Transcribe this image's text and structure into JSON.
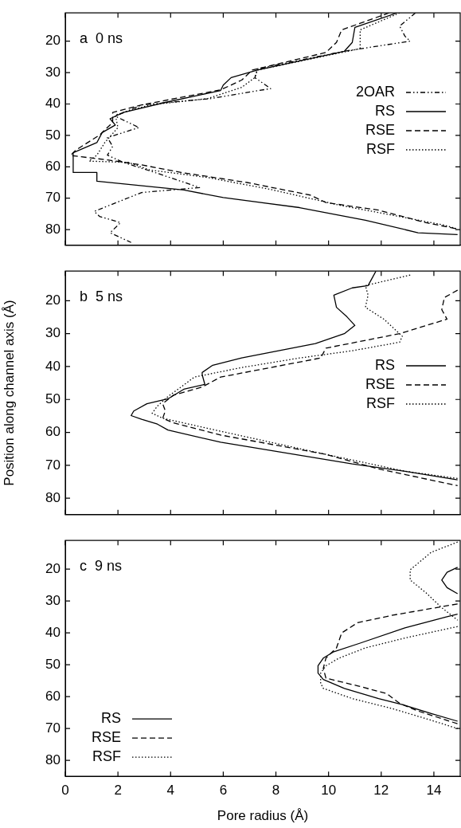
{
  "chart_data": [
    {
      "type": "line",
      "annotations": [
        "a  0 ns"
      ],
      "xlim": [
        0,
        15
      ],
      "xticks": [
        0,
        2,
        4,
        6,
        8,
        10,
        12,
        14
      ],
      "ylim": [
        85,
        11
      ],
      "yticks": [
        20,
        30,
        40,
        50,
        60,
        70,
        80
      ],
      "tick_labels": "y",
      "grid": false,
      "legend": "right",
      "marker": "none",
      "series": [
        {
          "name": "2OAR",
          "color": "#000000",
          "line_style": "dashdot",
          "x": [
            13.3,
            12.7,
            12.9,
            13.1,
            10.6,
            7.3,
            7.2,
            7.8,
            5.5,
            2.9,
            1.9,
            2.8,
            1.6,
            1.8,
            1.6,
            2.2,
            3.4,
            5.1,
            2.9,
            1.1,
            1.3,
            2.1,
            1.7,
            2.5
          ],
          "values": [
            11,
            15.2,
            18.4,
            20,
            23.2,
            28.8,
            31.6,
            35.1,
            38.3,
            40.3,
            43.9,
            47.5,
            50.7,
            53.5,
            56.3,
            58.6,
            61.8,
            66.6,
            68.2,
            74.2,
            75.8,
            77.8,
            81,
            84.1
          ]
        },
        {
          "name": "RS",
          "color": "#000000",
          "line_style": "solid",
          "x": [
            12.6,
            11.0,
            10.9,
            10.6,
            7.3,
            6.3,
            6.0,
            5.9,
            3.8,
            2.2,
            1.7,
            1.9,
            1.4,
            1.2,
            0.3,
            0.3,
            1.2,
            1.2,
            4.5,
            6.0,
            8.9,
            11.4,
            13.4,
            14.9
          ],
          "values": [
            11,
            15.6,
            20.4,
            23.2,
            29.2,
            31.6,
            34,
            35.7,
            39.5,
            42.7,
            44.7,
            46.7,
            49.1,
            52.3,
            55.5,
            61.8,
            61.8,
            64.6,
            67.4,
            69.8,
            73,
            77,
            81,
            81.6
          ]
        },
        {
          "name": "RSE",
          "color": "#000000",
          "line_style": "dashed",
          "x": [
            12.3,
            10.5,
            10.3,
            9.9,
            7.1,
            6.7,
            5.9,
            2.9,
            1.8,
            1.8,
            1.3,
            0.4,
            0.2,
            1.6,
            2.9,
            4.4,
            6.9,
            9.3,
            9.9,
            11.9,
            13.7,
            14.9
          ],
          "values": [
            11,
            16.4,
            20.4,
            23.6,
            29.2,
            32.4,
            35.5,
            40.3,
            42.7,
            45.9,
            49.9,
            54.7,
            56.4,
            57.8,
            59.4,
            61.8,
            65,
            69,
            71.4,
            73.8,
            77.8,
            79.8
          ]
        },
        {
          "name": "RSF",
          "color": "#000000",
          "line_style": "dotted",
          "x": [
            12.7,
            11.2,
            11.2,
            10.5,
            7.3,
            7.2,
            6.7,
            5.4,
            3.2,
            1.9,
            2.0,
            1.5,
            1.2,
            0.9,
            2.4,
            3.2,
            5.4,
            7.9,
            10.4,
            12.4,
            14.4,
            14.9
          ],
          "values": [
            11,
            16.4,
            22.4,
            23.6,
            29.2,
            31.6,
            34.7,
            38.3,
            40.3,
            43.5,
            47.5,
            52.3,
            56.3,
            58.2,
            58.6,
            61,
            63.4,
            67.4,
            72.2,
            75.4,
            78.6,
            79.8
          ]
        }
      ]
    },
    {
      "type": "line",
      "annotations": [
        "b  5 ns"
      ],
      "ylabel": "Position along channel axis (Å)",
      "xlim": [
        0,
        15
      ],
      "xticks": [
        0,
        2,
        4,
        6,
        8,
        10,
        12,
        14
      ],
      "ylim": [
        85,
        11
      ],
      "yticks": [
        20,
        30,
        40,
        50,
        60,
        70,
        80
      ],
      "tick_labels": "y",
      "grid": false,
      "legend": "right",
      "marker": "none",
      "series": [
        {
          "name": "RS",
          "color": "#000000",
          "line_style": "solid",
          "x": [
            11.8,
            11.5,
            10.9,
            10.2,
            10.3,
            10.7,
            11.0,
            10.6,
            9.5,
            8.1,
            6.7,
            5.6,
            5.2,
            5.2,
            5.3,
            4.5,
            3.9,
            3.1,
            2.6,
            2.5,
            2.9,
            3.5,
            3.9,
            5.9,
            8.1,
            10.9,
            12.9,
            14.9
          ],
          "values": [
            11,
            15.4,
            16.1,
            18.3,
            22,
            24.9,
            27.5,
            30,
            33,
            35.2,
            37.4,
            39.6,
            41.8,
            42.5,
            45.4,
            46.9,
            49.8,
            51.3,
            53.5,
            54.9,
            56,
            57.5,
            59.3,
            63,
            65.9,
            69.6,
            71.8,
            74.4
          ]
        },
        {
          "name": "RSE",
          "color": "#000000",
          "line_style": "dashed",
          "x": [
            14.9,
            14.4,
            14.3,
            14.5,
            12.7,
            9.9,
            9.7,
            5.9,
            5.2,
            4.1,
            3.7,
            3.8,
            3.7,
            4.1,
            5.9,
            9.9,
            11.9,
            14.9
          ],
          "values": [
            16.8,
            19,
            22.7,
            25.6,
            30,
            34.4,
            37.4,
            43.2,
            46.2,
            48.7,
            51.3,
            53.5,
            55.7,
            57.1,
            60.8,
            66.7,
            71.1,
            76.2
          ]
        },
        {
          "name": "RSF",
          "color": "#000000",
          "line_style": "dotted",
          "x": [
            13.1,
            11.4,
            11.5,
            11.4,
            12.1,
            12.6,
            12.8,
            12.7,
            10.9,
            8.9,
            6.7,
            4.9,
            4.4,
            3.9,
            3.5,
            3.3,
            3.7,
            5.7,
            9.9,
            12.9,
            14.9
          ],
          "values": [
            12.2,
            15.4,
            18.3,
            22,
            25.6,
            29.3,
            30.8,
            32.6,
            35.2,
            37.4,
            40.3,
            43.2,
            46.2,
            49.1,
            52,
            54.2,
            55.7,
            59.3,
            66.7,
            71.8,
            74
          ]
        }
      ]
    },
    {
      "type": "line",
      "annotations": [
        "c  9 ns"
      ],
      "xlabel": "Pore radius (Å)",
      "xlim": [
        0,
        15
      ],
      "xticks": [
        0,
        2,
        4,
        6,
        8,
        10,
        12,
        14
      ],
      "ylim": [
        85,
        11
      ],
      "yticks": [
        20,
        30,
        40,
        50,
        60,
        70,
        80
      ],
      "grid": false,
      "legend": "bottom left",
      "marker": "none",
      "series": [
        {
          "name": "RS",
          "color": "#000000",
          "line_style": "solid",
          "x": [
            14.9,
            14.5,
            14.3,
            14.5,
            14.9,
            null,
            14.9,
            14.5,
            12.9,
            11.2,
            10.2,
            9.8,
            9.6,
            9.6,
            9.8,
            10.6,
            11.9,
            12.8,
            13.9,
            14.9
          ],
          "values": [
            19.4,
            21,
            23.4,
            25.8,
            27.7,
            null,
            34.1,
            34.9,
            38.4,
            43.2,
            45.9,
            47.9,
            50.3,
            52.6,
            54.6,
            57.4,
            60.6,
            62.5,
            65.3,
            67.7
          ]
        },
        {
          "name": "RSE",
          "color": "#000000",
          "line_style": "dashed",
          "x": [
            14.9,
            12.4,
            11.1,
            10.5,
            10.3,
            9.9,
            9.8,
            9.9,
            11.1,
            12.2,
            12.7,
            13.4,
            14.9
          ],
          "values": [
            30.9,
            34.5,
            36.8,
            40,
            44.7,
            47.9,
            51.1,
            54.2,
            56.6,
            59,
            62.1,
            64.5,
            68.5
          ]
        },
        {
          "name": "RSF",
          "color": "#000000",
          "line_style": "dotted",
          "x": [
            14.9,
            13.9,
            13.1,
            13.1,
            13.7,
            14.3,
            14.9,
            null,
            14.9,
            12.9,
            11.4,
            10.4,
            9.9,
            9.7,
            9.7,
            9.8,
            10.9,
            12.4,
            13.7,
            14.9
          ],
          "values": [
            11.5,
            14.7,
            20.2,
            23.4,
            27.4,
            32.1,
            36,
            null,
            38,
            41.6,
            44.7,
            47.9,
            50.3,
            52.6,
            55.8,
            57.4,
            60.6,
            63.7,
            66.9,
            70
          ]
        }
      ]
    }
  ]
}
